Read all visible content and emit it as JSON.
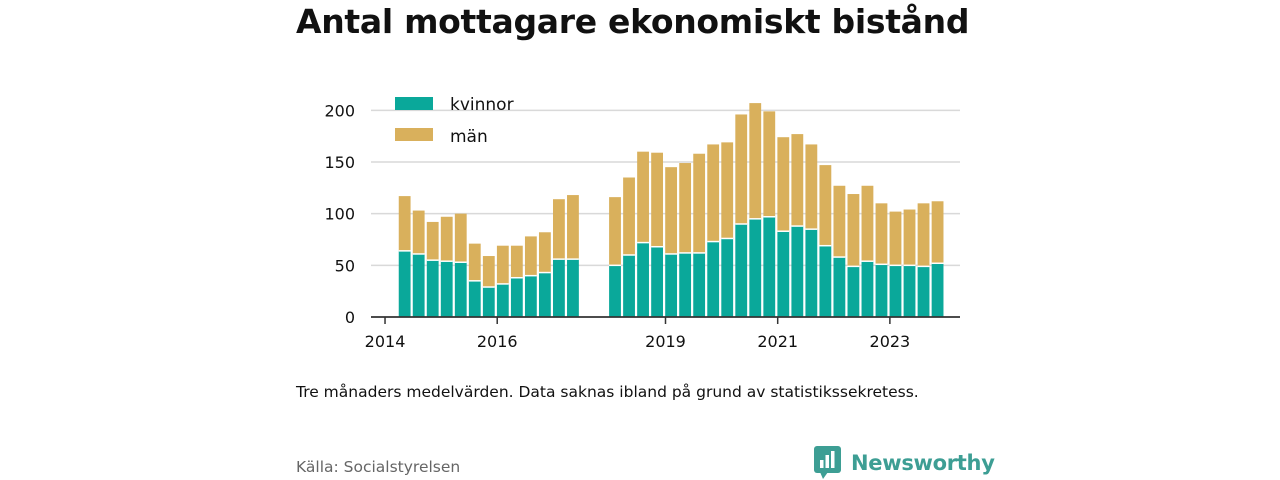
{
  "title": "Antal mottagare ekonomiskt bistånd",
  "note": "Tre månaders medelvärden. Data saknas ibland på grund av statistikssekretess.",
  "source": "Källa: Socialstyrelsen",
  "brand": "Newsworthy",
  "colors": {
    "kvinnor": "#0aa89a",
    "man": "#d9b05c",
    "brand": "#3d9e94",
    "grid": "#d9d9d9",
    "axis": "#333333"
  },
  "chart_data": {
    "type": "bar",
    "stacked": true,
    "x_tick_labels": [
      "2014",
      "2016",
      "2019",
      "2021",
      "2023"
    ],
    "x_tick_years": [
      2014,
      2016,
      2019,
      2021,
      2023
    ],
    "xlim": [
      2013.75,
      2024.25
    ],
    "y_ticks": [
      0,
      50,
      100,
      150,
      200
    ],
    "ylim": [
      0,
      210
    ],
    "grid": true,
    "legend_position": "top-left",
    "x": [
      2014.35,
      2014.6,
      2014.85,
      2015.1,
      2015.35,
      2015.6,
      2015.85,
      2016.1,
      2016.35,
      2016.6,
      2016.85,
      2017.1,
      2017.35,
      2018.1,
      2018.35,
      2018.6,
      2018.85,
      2019.1,
      2019.35,
      2019.6,
      2019.85,
      2020.1,
      2020.35,
      2020.6,
      2020.85,
      2021.1,
      2021.35,
      2021.6,
      2021.85,
      2022.1,
      2022.35,
      2022.6,
      2022.85,
      2023.1,
      2023.35,
      2023.6,
      2023.85
    ],
    "series": [
      {
        "name": "kvinnor",
        "values": [
          64,
          61,
          55,
          54,
          53,
          35,
          29,
          32,
          38,
          40,
          43,
          56,
          56,
          50,
          60,
          72,
          68,
          61,
          62,
          62,
          73,
          76,
          90,
          95,
          97,
          83,
          88,
          85,
          69,
          58,
          49,
          54,
          51,
          50,
          50,
          49,
          52
        ]
      },
      {
        "name": "män",
        "values": [
          53,
          42,
          37,
          43,
          47,
          36,
          30,
          37,
          31,
          38,
          39,
          58,
          62,
          66,
          75,
          88,
          91,
          84,
          87,
          96,
          94,
          93,
          106,
          112,
          102,
          91,
          89,
          82,
          78,
          69,
          70,
          73,
          59,
          52,
          54,
          61,
          60
        ]
      }
    ]
  }
}
